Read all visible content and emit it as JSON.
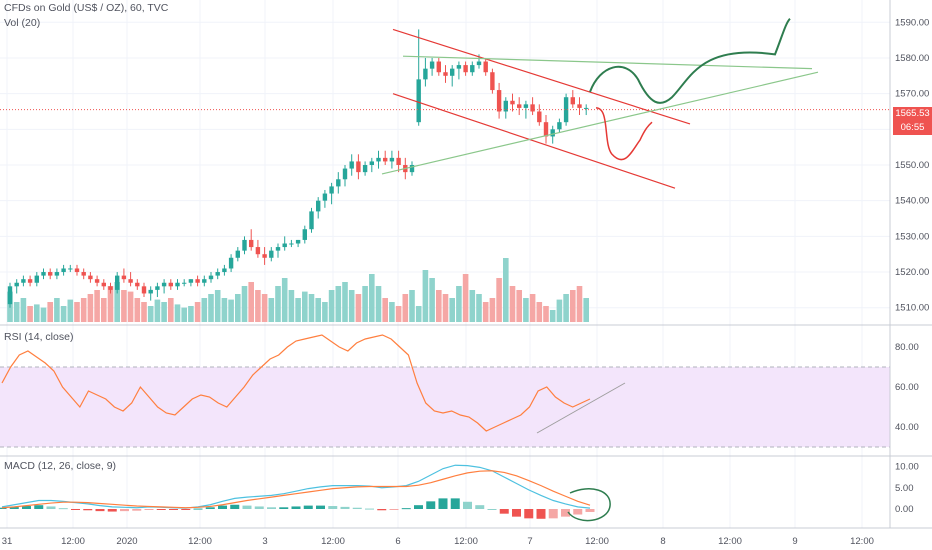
{
  "header": {
    "title": "CFDs on Gold (US$ / OZ), 60, TVC",
    "volume_label": "Vol (20)"
  },
  "price_axis": {
    "ticks": [
      "1590.00",
      "1580.00",
      "1570.00",
      "1560.00",
      "1550.00",
      "1540.00",
      "1530.00",
      "1520.00",
      "1510.00"
    ],
    "last_price": "1565.53",
    "countdown": "06:55"
  },
  "rsi_pane": {
    "label": "RSI (14, close)",
    "ticks": [
      "80.00",
      "60.00",
      "40.00"
    ]
  },
  "macd_pane": {
    "label": "MACD (12, 26, close, 9)",
    "ticks": [
      "10.00",
      "5.00",
      "0.00"
    ]
  },
  "time_axis": {
    "labels": [
      "31",
      "12:00",
      "2020",
      "12:00",
      "3",
      "12:00",
      "6",
      "12:00",
      "7",
      "12:00",
      "8",
      "12:00",
      "9",
      "12:00"
    ]
  },
  "colors": {
    "up": "#26a69a",
    "down": "#ef5350",
    "vol_up": "#8fd3cc",
    "vol_down": "#f5a7a5",
    "rsi_line": "#ff7f3f",
    "rsi_band": "#f3e5fb",
    "macd_line": "#4ec1e0",
    "signal_line": "#ff7f3f",
    "trend_red": "#e53935",
    "trend_green": "#8bc78b",
    "drawing_green": "#2e7d4f",
    "drawing_red": "#e53935",
    "rsi_trend": "#9e9e9e"
  },
  "chart_data": {
    "type": "candlestick",
    "title": "CFDs on Gold (US$ / OZ), 60, TVC",
    "ylim": [
      1506,
      1594
    ],
    "candles": [
      [
        1511,
        1517,
        1510,
        1516
      ],
      [
        1516,
        1518,
        1514,
        1517
      ],
      [
        1517,
        1519,
        1516,
        1518
      ],
      [
        1518,
        1519,
        1516,
        1517
      ],
      [
        1517,
        1520,
        1516,
        1519
      ],
      [
        1519,
        1521,
        1518,
        1520
      ],
      [
        1520,
        1521,
        1518,
        1519
      ],
      [
        1519,
        1521,
        1518,
        1520
      ],
      [
        1520,
        1522,
        1519,
        1521
      ],
      [
        1521,
        1522,
        1520,
        1521
      ],
      [
        1521,
        1522,
        1519,
        1520
      ],
      [
        1520,
        1521,
        1518,
        1519
      ],
      [
        1519,
        1520,
        1517,
        1518
      ],
      [
        1518,
        1519,
        1516,
        1517
      ],
      [
        1517,
        1518,
        1515,
        1516
      ],
      [
        1516,
        1517,
        1514,
        1515
      ],
      [
        1515,
        1520,
        1514,
        1519
      ],
      [
        1519,
        1521,
        1517,
        1518
      ],
      [
        1518,
        1520,
        1516,
        1517
      ],
      [
        1517,
        1518,
        1515,
        1516
      ],
      [
        1516,
        1517,
        1513,
        1514
      ],
      [
        1514,
        1516,
        1512,
        1515
      ],
      [
        1515,
        1517,
        1513,
        1516
      ],
      [
        1516,
        1518,
        1514,
        1517
      ],
      [
        1517,
        1518,
        1515,
        1516
      ],
      [
        1516,
        1518,
        1515,
        1517
      ],
      [
        1517,
        1518,
        1516,
        1517
      ],
      [
        1517,
        1518,
        1516,
        1518
      ],
      [
        1518,
        1519,
        1516,
        1517
      ],
      [
        1517,
        1519,
        1516,
        1518
      ],
      [
        1518,
        1520,
        1517,
        1519
      ],
      [
        1519,
        1521,
        1518,
        1520
      ],
      [
        1520,
        1522,
        1519,
        1521
      ],
      [
        1521,
        1525,
        1520,
        1524
      ],
      [
        1524,
        1527,
        1523,
        1526
      ],
      [
        1526,
        1530,
        1525,
        1529
      ],
      [
        1529,
        1532,
        1526,
        1527
      ],
      [
        1527,
        1529,
        1524,
        1525
      ],
      [
        1525,
        1527,
        1522,
        1524
      ],
      [
        1524,
        1527,
        1523,
        1526
      ],
      [
        1526,
        1528,
        1524,
        1527
      ],
      [
        1527,
        1530,
        1526,
        1528
      ],
      [
        1528,
        1529,
        1527,
        1528
      ],
      [
        1528,
        1529,
        1527,
        1529
      ],
      [
        1529,
        1533,
        1528,
        1532
      ],
      [
        1532,
        1538,
        1531,
        1537
      ],
      [
        1537,
        1541,
        1535,
        1540
      ],
      [
        1540,
        1543,
        1538,
        1542
      ],
      [
        1542,
        1545,
        1539,
        1544
      ],
      [
        1544,
        1548,
        1542,
        1546
      ],
      [
        1546,
        1550,
        1544,
        1549
      ],
      [
        1549,
        1553,
        1547,
        1551
      ],
      [
        1551,
        1553,
        1546,
        1548
      ],
      [
        1548,
        1551,
        1547,
        1550
      ],
      [
        1550,
        1552,
        1548,
        1551
      ],
      [
        1551,
        1554,
        1549,
        1552
      ],
      [
        1552,
        1554,
        1550,
        1551
      ],
      [
        1551,
        1554,
        1549,
        1552
      ],
      [
        1552,
        1554,
        1548,
        1550
      ],
      [
        1550,
        1552,
        1546,
        1548
      ],
      [
        1548,
        1551,
        1547,
        1550
      ],
      [
        1562,
        1588,
        1561,
        1574
      ],
      [
        1574,
        1580,
        1572,
        1577
      ],
      [
        1577,
        1580,
        1575,
        1579
      ],
      [
        1579,
        1580,
        1575,
        1576
      ],
      [
        1576,
        1578,
        1573,
        1575
      ],
      [
        1575,
        1578,
        1572,
        1577
      ],
      [
        1577,
        1579,
        1574,
        1578
      ],
      [
        1578,
        1579,
        1575,
        1576
      ],
      [
        1576,
        1579,
        1575,
        1578
      ],
      [
        1578,
        1581,
        1577,
        1579
      ],
      [
        1579,
        1580,
        1575,
        1576
      ],
      [
        1576,
        1577,
        1570,
        1571
      ],
      [
        1571,
        1573,
        1563,
        1565
      ],
      [
        1565,
        1569,
        1563,
        1568
      ],
      [
        1568,
        1570,
        1565,
        1567
      ],
      [
        1567,
        1569,
        1564,
        1566
      ],
      [
        1566,
        1568,
        1563,
        1567
      ],
      [
        1567,
        1569,
        1564,
        1565
      ],
      [
        1565,
        1567,
        1561,
        1562
      ],
      [
        1562,
        1564,
        1556,
        1558
      ],
      [
        1558,
        1561,
        1556,
        1560
      ],
      [
        1560,
        1563,
        1559,
        1562
      ],
      [
        1562,
        1570,
        1561,
        1569
      ],
      [
        1569,
        1571,
        1566,
        1567
      ],
      [
        1567,
        1569,
        1564,
        1566
      ],
      [
        1566,
        1567,
        1564,
        1566
      ]
    ],
    "volume_max": 100,
    "volume": [
      38,
      25,
      30,
      20,
      22,
      18,
      25,
      30,
      20,
      28,
      25,
      30,
      35,
      40,
      30,
      45,
      50,
      40,
      38,
      30,
      25,
      20,
      28,
      25,
      30,
      22,
      18,
      20,
      25,
      30,
      35,
      40,
      30,
      28,
      35,
      45,
      50,
      40,
      35,
      30,
      45,
      55,
      40,
      30,
      38,
      35,
      30,
      25,
      40,
      45,
      50,
      40,
      35,
      45,
      60,
      45,
      30,
      25,
      20,
      35,
      40,
      20,
      65,
      55,
      40,
      35,
      30,
      45,
      60,
      40,
      35,
      25,
      30,
      55,
      80,
      45,
      40,
      30,
      35,
      25,
      20,
      15,
      28,
      35,
      40,
      45,
      30
    ],
    "rsi": [
      62,
      70,
      76,
      78,
      75,
      72,
      68,
      60,
      55,
      50,
      58,
      56,
      54,
      50,
      48,
      52,
      60,
      55,
      50,
      47,
      46,
      50,
      54,
      56,
      55,
      52,
      50,
      55,
      60,
      66,
      70,
      74,
      76,
      80,
      83,
      84,
      85,
      86,
      83,
      80,
      78,
      82,
      84,
      85,
      86,
      84,
      80,
      76,
      62,
      52,
      48,
      47,
      48,
      46,
      45,
      42,
      38,
      40,
      42,
      44,
      46,
      50,
      58,
      60,
      55,
      52,
      50,
      52,
      54
    ],
    "rsi_band": [
      30,
      70
    ],
    "rsi_ylim": [
      26,
      90
    ],
    "macd": [
      0.5,
      1.0,
      1.5,
      2.0,
      2.0,
      1.8,
      1.5,
      1.2,
      0.8,
      0.5,
      0.4,
      0.3,
      0.5,
      0.4,
      0.3,
      0.2,
      0.5,
      1.0,
      1.8,
      2.5,
      2.8,
      3.0,
      3.2,
      3.6,
      4.2,
      4.8,
      5.2,
      5.5,
      5.5,
      5.5,
      5.4,
      5.0,
      5.2,
      5.5,
      6.5,
      8.0,
      9.5,
      10.3,
      10.2,
      9.8,
      9.0,
      7.5,
      6.0,
      4.5,
      3.2,
      2.0,
      1.2,
      0.5,
      0.2
    ],
    "signal": [
      0.3,
      0.5,
      0.8,
      1.1,
      1.4,
      1.6,
      1.6,
      1.5,
      1.3,
      1.1,
      0.9,
      0.7,
      0.6,
      0.5,
      0.4,
      0.3,
      0.4,
      0.6,
      1.0,
      1.5,
      2.0,
      2.4,
      2.8,
      3.2,
      3.6,
      4.0,
      4.4,
      4.8,
      5.0,
      5.2,
      5.3,
      5.3,
      5.3,
      5.3,
      5.6,
      6.2,
      7.0,
      7.8,
      8.5,
      8.9,
      9.0,
      8.6,
      7.8,
      6.7,
      5.5,
      4.2,
      3.0,
      1.8,
      0.9
    ],
    "histogram": [
      0.3,
      0.5,
      0.7,
      0.9,
      0.6,
      0.2,
      -0.1,
      -0.3,
      -0.5,
      -0.6,
      -0.5,
      -0.4,
      -0.1,
      -0.1,
      -0.1,
      -0.1,
      0.1,
      0.4,
      0.8,
      1.0,
      0.8,
      0.6,
      0.4,
      0.4,
      0.6,
      0.8,
      0.8,
      0.7,
      0.5,
      0.3,
      0.1,
      -0.3,
      -0.1,
      0.2,
      0.9,
      1.8,
      2.5,
      2.5,
      1.7,
      0.9,
      0.0,
      -1.1,
      -1.8,
      -2.2,
      -2.3,
      -2.2,
      -1.8,
      -1.3,
      -0.7
    ],
    "macd_ylim": [
      -4,
      12
    ]
  }
}
